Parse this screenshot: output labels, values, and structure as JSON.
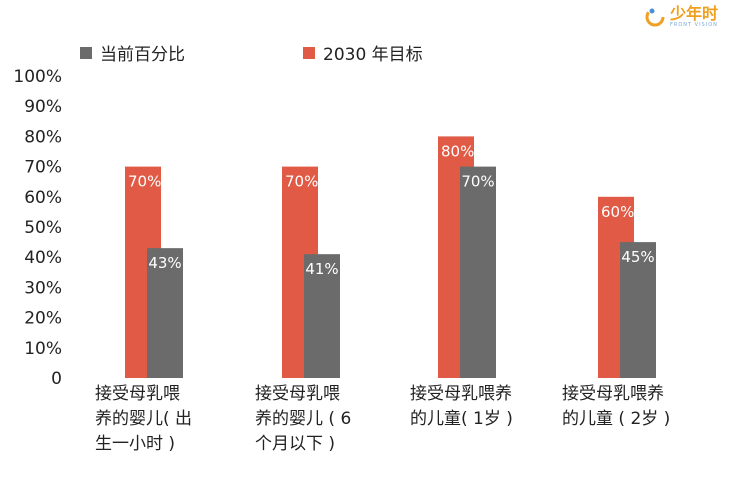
{
  "logo": {
    "name": "少年时",
    "subtitle": "FRONT VISION"
  },
  "chart_data": {
    "type": "bar",
    "categories": [
      "接受母乳喂\n养的婴儿( 出\n生一小时 )",
      "接受母乳喂\n养的婴儿 ( 6\n个月以下 )",
      "接受母乳喂养\n的儿童( 1岁 )",
      "接受母乳喂养\n的儿童 ( 2岁 )"
    ],
    "series": [
      {
        "name": "当前百分比",
        "color": "#6b6b6b",
        "values": [
          43,
          41,
          70,
          45
        ],
        "labels": [
          "43%",
          "41%",
          "70%",
          "45%"
        ]
      },
      {
        "name": "2030 年目标",
        "color": "#e05a45",
        "values": [
          70,
          70,
          80,
          60
        ],
        "labels": [
          "70%",
          "70%",
          "80%",
          "60%"
        ]
      }
    ],
    "ylim": [
      0,
      100
    ],
    "yticks": [
      "0",
      "10%",
      "20%",
      "30%",
      "40%",
      "50%",
      "60%",
      "70%",
      "80%",
      "90%",
      "100%"
    ],
    "legend_position": "top-left",
    "grid": false
  }
}
